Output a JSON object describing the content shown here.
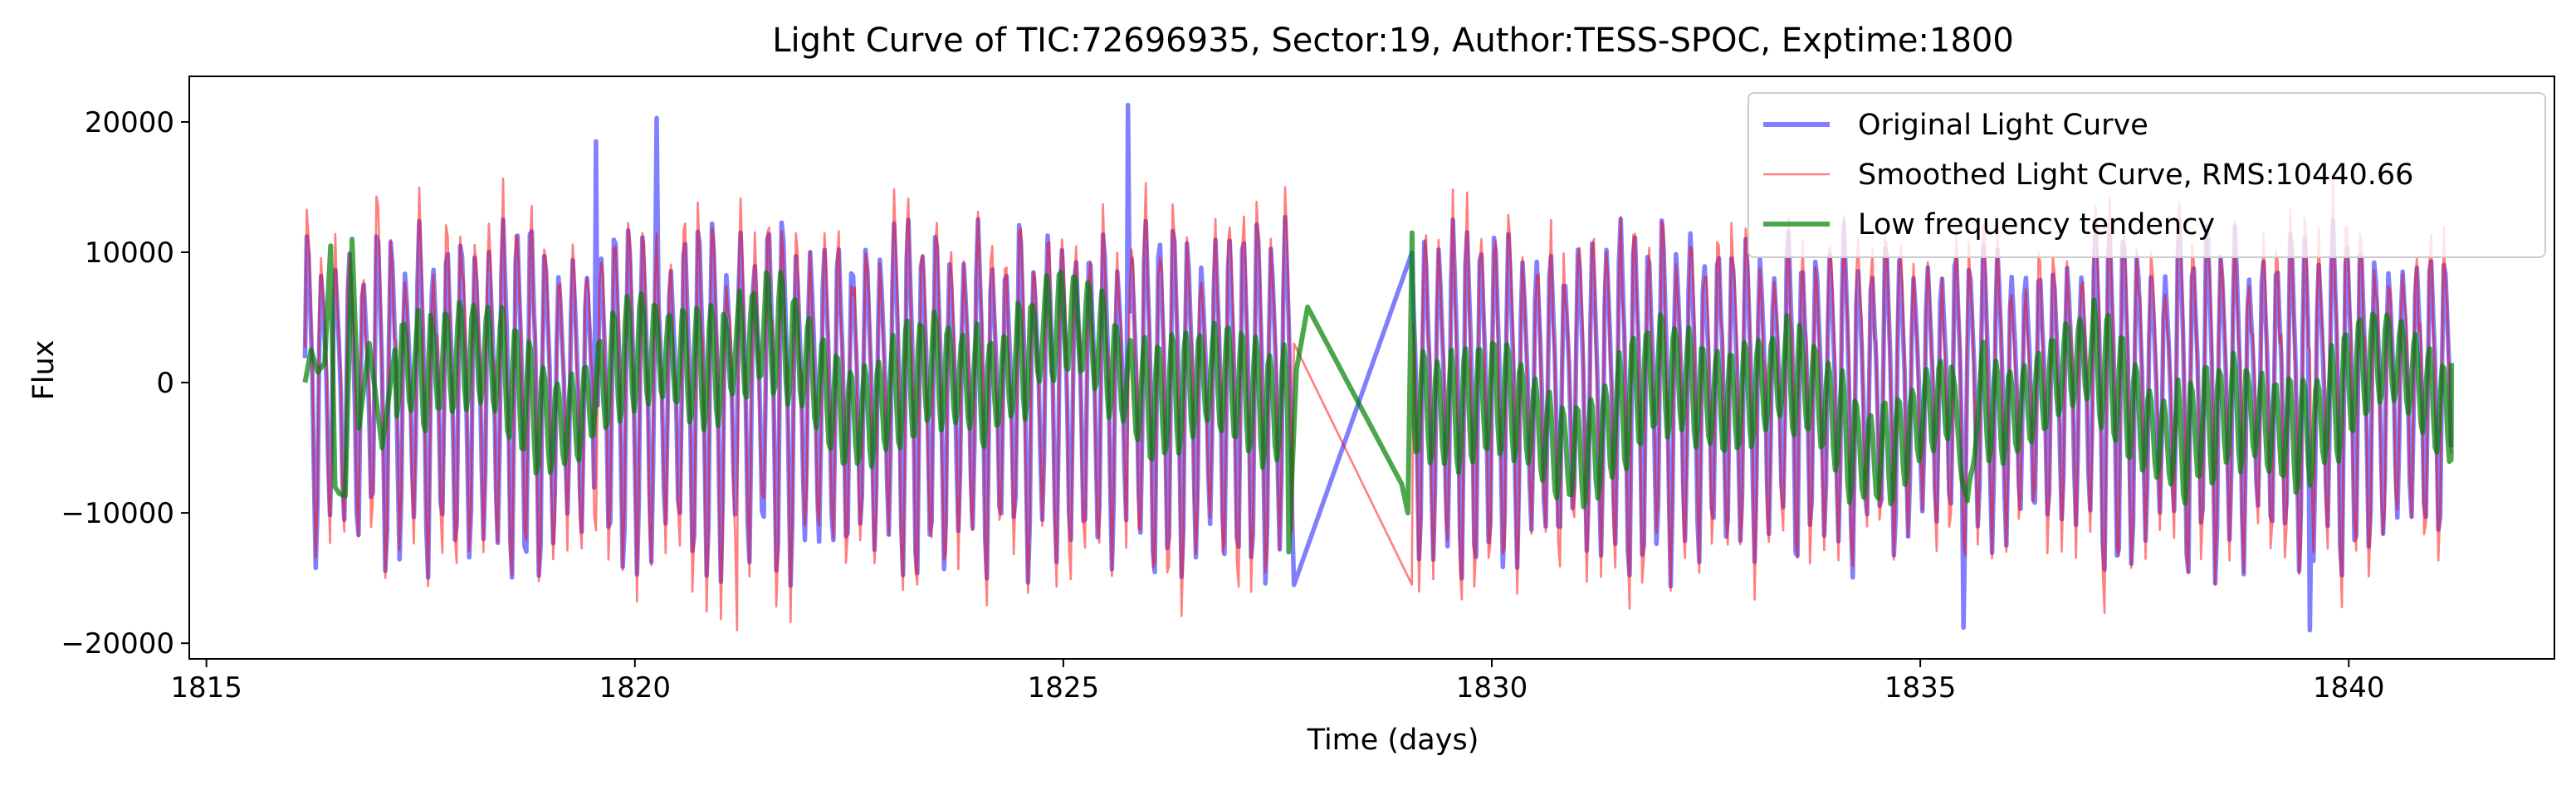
{
  "chart_data": {
    "type": "line",
    "title": "Light Curve of TIC:72696935, Sector:19, Author:TESS-SPOC, Exptime:1800",
    "xlabel": "Time (days)",
    "ylabel": "Flux",
    "xlim": [
      1814.8,
      1842.4
    ],
    "ylim": [
      -21200,
      23500
    ],
    "x_ticks": [
      1815,
      1820,
      1825,
      1830,
      1835,
      1840
    ],
    "x_tick_labels": [
      "1815",
      "1820",
      "1825",
      "1830",
      "1835",
      "1840"
    ],
    "y_ticks": [
      -20000,
      -10000,
      0,
      10000,
      20000
    ],
    "y_tick_labels": [
      "−20000",
      "−10000",
      "0",
      "10000",
      "20000"
    ],
    "grid": false,
    "legend_position": "top-right",
    "time_start": 1816.15,
    "time_end": 1841.2,
    "gap": [
      1827.7,
      1829.05
    ],
    "oscillation_period_days": 0.163,
    "series": [
      {
        "name": "Original Light Curve",
        "color": "#0000ff",
        "opacity": 0.5,
        "line_weight": "thick",
        "amplitude_typical": 12500,
        "notable_points": [
          {
            "x": 1819.55,
            "y": 18500
          },
          {
            "x": 1820.25,
            "y": 20300
          },
          {
            "x": 1825.75,
            "y": 21300
          },
          {
            "x": 1835.5,
            "y": -18800
          },
          {
            "x": 1839.55,
            "y": -19000
          }
        ]
      },
      {
        "name": "Smoothed Light Curve, RMS:10440.66",
        "color": "#ff0000",
        "opacity": 0.5,
        "line_weight": "thin",
        "amplitude_typical": 13500,
        "notable_points": [
          {
            "x": 1821.2,
            "y": -19000
          },
          {
            "x": 1827.7,
            "y": 3000
          },
          {
            "x": 1829.0,
            "y": -15500
          }
        ]
      },
      {
        "name": "Low frequency tendency",
        "color": "#008000",
        "opacity": 0.7,
        "line_weight": "thick",
        "x": [
          1816.15,
          1816.22,
          1816.3,
          1816.38,
          1816.45,
          1816.5,
          1816.55,
          1816.62,
          1816.7,
          1816.78,
          1816.9,
          1817.05,
          1817.2
        ],
        "y": [
          0,
          2500,
          800,
          1500,
          10500,
          -8000,
          -8500,
          -8700,
          11000,
          -3500,
          3000,
          -5000,
          2500
        ],
        "gap_segment": {
          "x": [
            1827.63,
            1827.72,
            1827.85,
            1828.95,
            1829.02,
            1829.07
          ],
          "y": [
            -13000,
            1000,
            5800,
            -7800,
            -10000,
            11500
          ]
        },
        "dip": {
          "x": [
            1835.35,
            1835.55,
            1835.75
          ],
          "y": [
            2000,
            -9700,
            3500
          ]
        }
      }
    ]
  }
}
